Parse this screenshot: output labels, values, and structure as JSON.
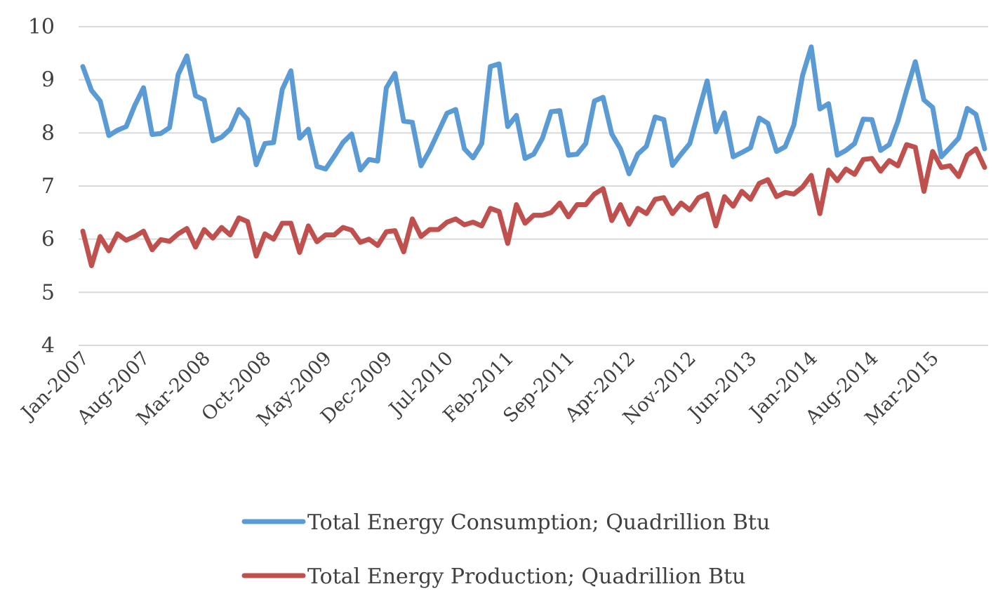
{
  "chart_data": {
    "type": "line",
    "title": "",
    "xlabel": "",
    "ylabel": "",
    "ylim": [
      4,
      10
    ],
    "yticks": [
      4,
      5,
      6,
      7,
      8,
      9,
      10
    ],
    "grid": true,
    "legend_position": "bottom",
    "x_tick_labels": [
      "Jan-2007",
      "Aug-2007",
      "Mar-2008",
      "Oct-2008",
      "May-2009",
      "Dec-2009",
      "Jul-2010",
      "Feb-2011",
      "Sep-2011",
      "Apr-2012",
      "Nov-2012",
      "Jun-2013",
      "Jan-2014",
      "Aug-2014",
      "Mar-2015"
    ],
    "x_start": "Jan-2007",
    "x_end": "Dec-2015",
    "series": [
      {
        "name": "Total Energy Consumption; Quadrillion Btu",
        "color": "#5b9bd5",
        "values": [
          9.25,
          8.8,
          8.6,
          7.95,
          8.05,
          8.12,
          8.52,
          8.85,
          7.97,
          7.99,
          8.1,
          9.1,
          9.45,
          8.7,
          8.62,
          7.85,
          7.92,
          8.07,
          8.44,
          8.25,
          7.4,
          7.8,
          7.82,
          8.82,
          9.17,
          7.9,
          8.07,
          7.37,
          7.32,
          7.56,
          7.82,
          7.98,
          7.3,
          7.5,
          7.47,
          8.85,
          9.12,
          8.22,
          8.2,
          7.38,
          7.67,
          8.02,
          8.37,
          8.44,
          7.7,
          7.53,
          7.8,
          9.25,
          9.3,
          8.12,
          8.33,
          7.52,
          7.6,
          7.9,
          8.4,
          8.42,
          7.58,
          7.6,
          7.8,
          8.6,
          8.67,
          7.98,
          7.7,
          7.23,
          7.6,
          7.75,
          8.3,
          8.25,
          7.39,
          7.6,
          7.8,
          8.4,
          8.98,
          8.02,
          8.38,
          7.55,
          7.63,
          7.72,
          8.28,
          8.18,
          7.65,
          7.74,
          8.15,
          9.08,
          9.62,
          8.45,
          8.55,
          7.58,
          7.67,
          7.8,
          8.26,
          8.25,
          7.67,
          7.78,
          8.22,
          8.8,
          9.34,
          8.62,
          8.48,
          7.55,
          7.72,
          7.9,
          8.46,
          8.35,
          7.7
        ]
      },
      {
        "name": "Total Energy Production; Quadrillion Btu",
        "color": "#c0504d",
        "values": [
          6.15,
          5.5,
          6.05,
          5.78,
          6.1,
          5.98,
          6.05,
          6.15,
          5.8,
          5.99,
          5.96,
          6.1,
          6.2,
          5.85,
          6.18,
          6.02,
          6.22,
          6.08,
          6.4,
          6.33,
          5.68,
          6.1,
          6.0,
          6.3,
          6.3,
          5.75,
          6.25,
          5.95,
          6.08,
          6.08,
          6.22,
          6.17,
          5.94,
          6.0,
          5.88,
          6.14,
          6.16,
          5.76,
          6.38,
          6.05,
          6.18,
          6.18,
          6.32,
          6.38,
          6.27,
          6.32,
          6.25,
          6.58,
          6.52,
          5.92,
          6.65,
          6.3,
          6.45,
          6.45,
          6.5,
          6.68,
          6.42,
          6.65,
          6.65,
          6.85,
          6.95,
          6.35,
          6.65,
          6.28,
          6.58,
          6.48,
          6.75,
          6.78,
          6.48,
          6.68,
          6.55,
          6.78,
          6.85,
          6.25,
          6.8,
          6.62,
          6.9,
          6.75,
          7.05,
          7.12,
          6.8,
          6.88,
          6.85,
          6.98,
          7.2,
          6.48,
          7.3,
          7.1,
          7.32,
          7.22,
          7.5,
          7.52,
          7.28,
          7.48,
          7.38,
          7.78,
          7.73,
          6.9,
          7.65,
          7.35,
          7.38,
          7.18,
          7.58,
          7.7,
          7.35
        ]
      }
    ]
  }
}
